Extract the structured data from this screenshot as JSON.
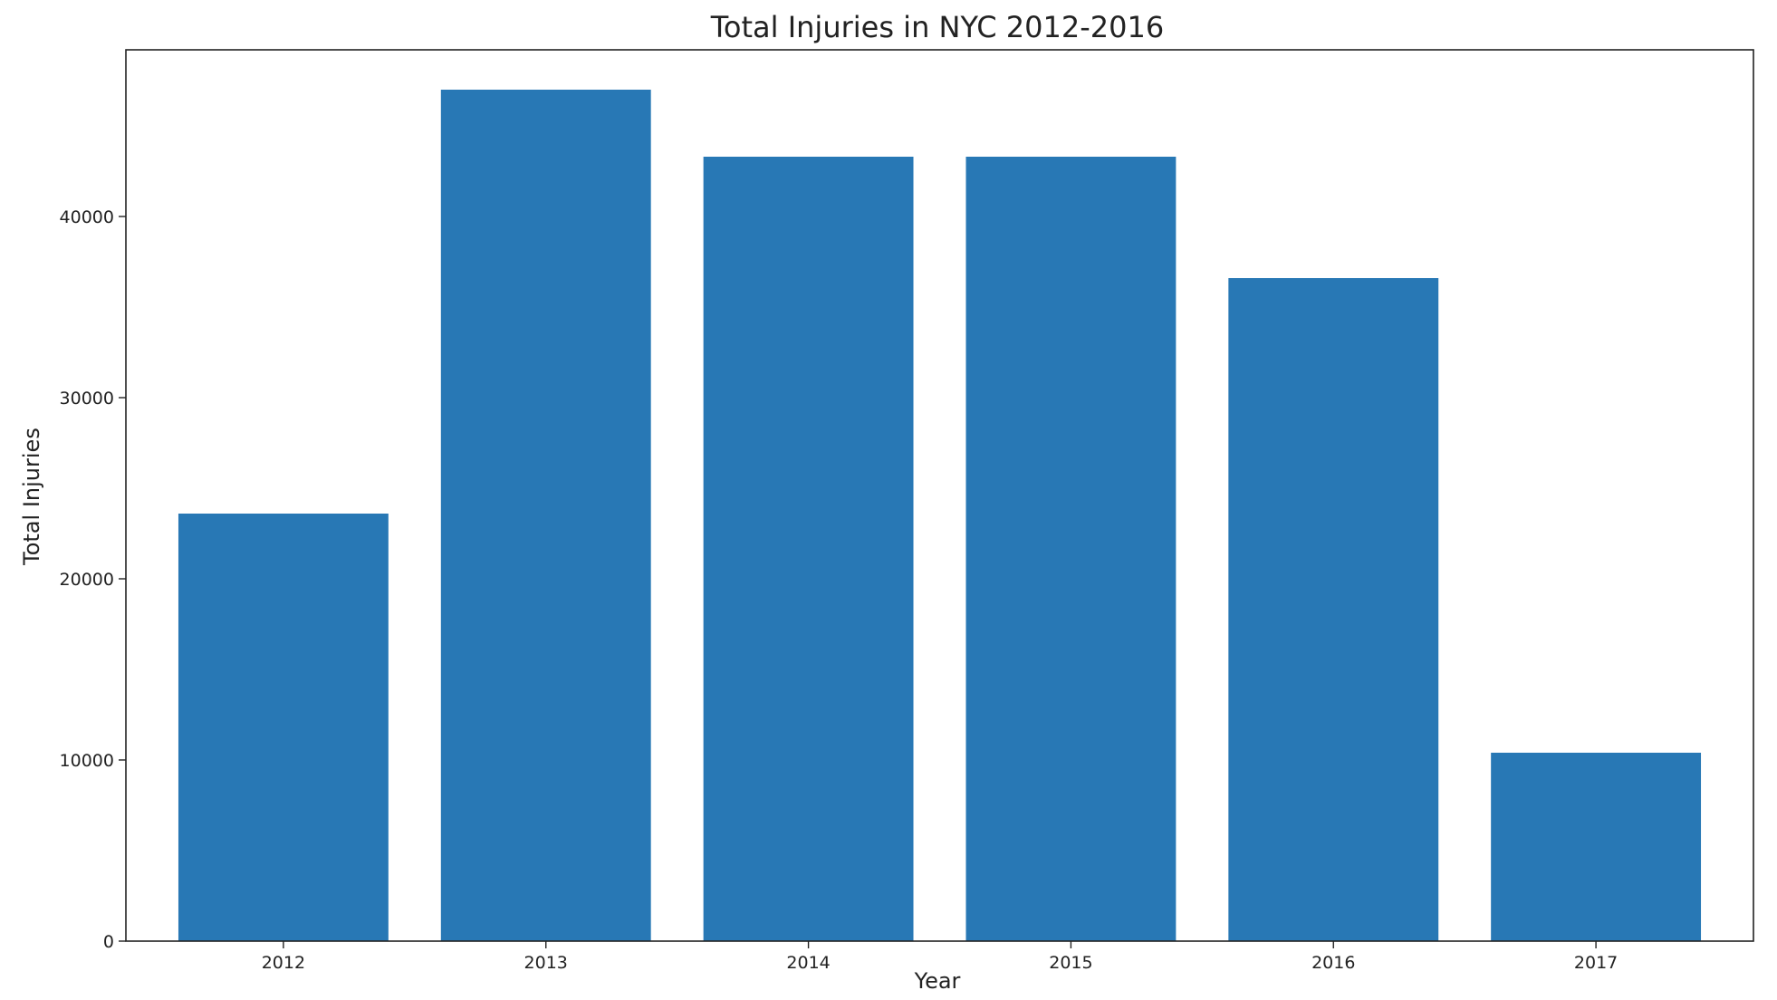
{
  "chart_data": {
    "type": "bar",
    "title": "Total Injuries in NYC 2012-2016",
    "xlabel": "Year",
    "ylabel": "Total Injuries",
    "categories": [
      "2012",
      "2013",
      "2014",
      "2015",
      "2016",
      "2017"
    ],
    "values": [
      23600,
      47000,
      43300,
      43300,
      36600,
      10400
    ],
    "ylim": [
      0,
      49200
    ],
    "yticks": [
      0,
      10000,
      20000,
      30000,
      40000
    ],
    "grid": false,
    "bar_color": "#2878b5",
    "axis_color": "#222222"
  }
}
